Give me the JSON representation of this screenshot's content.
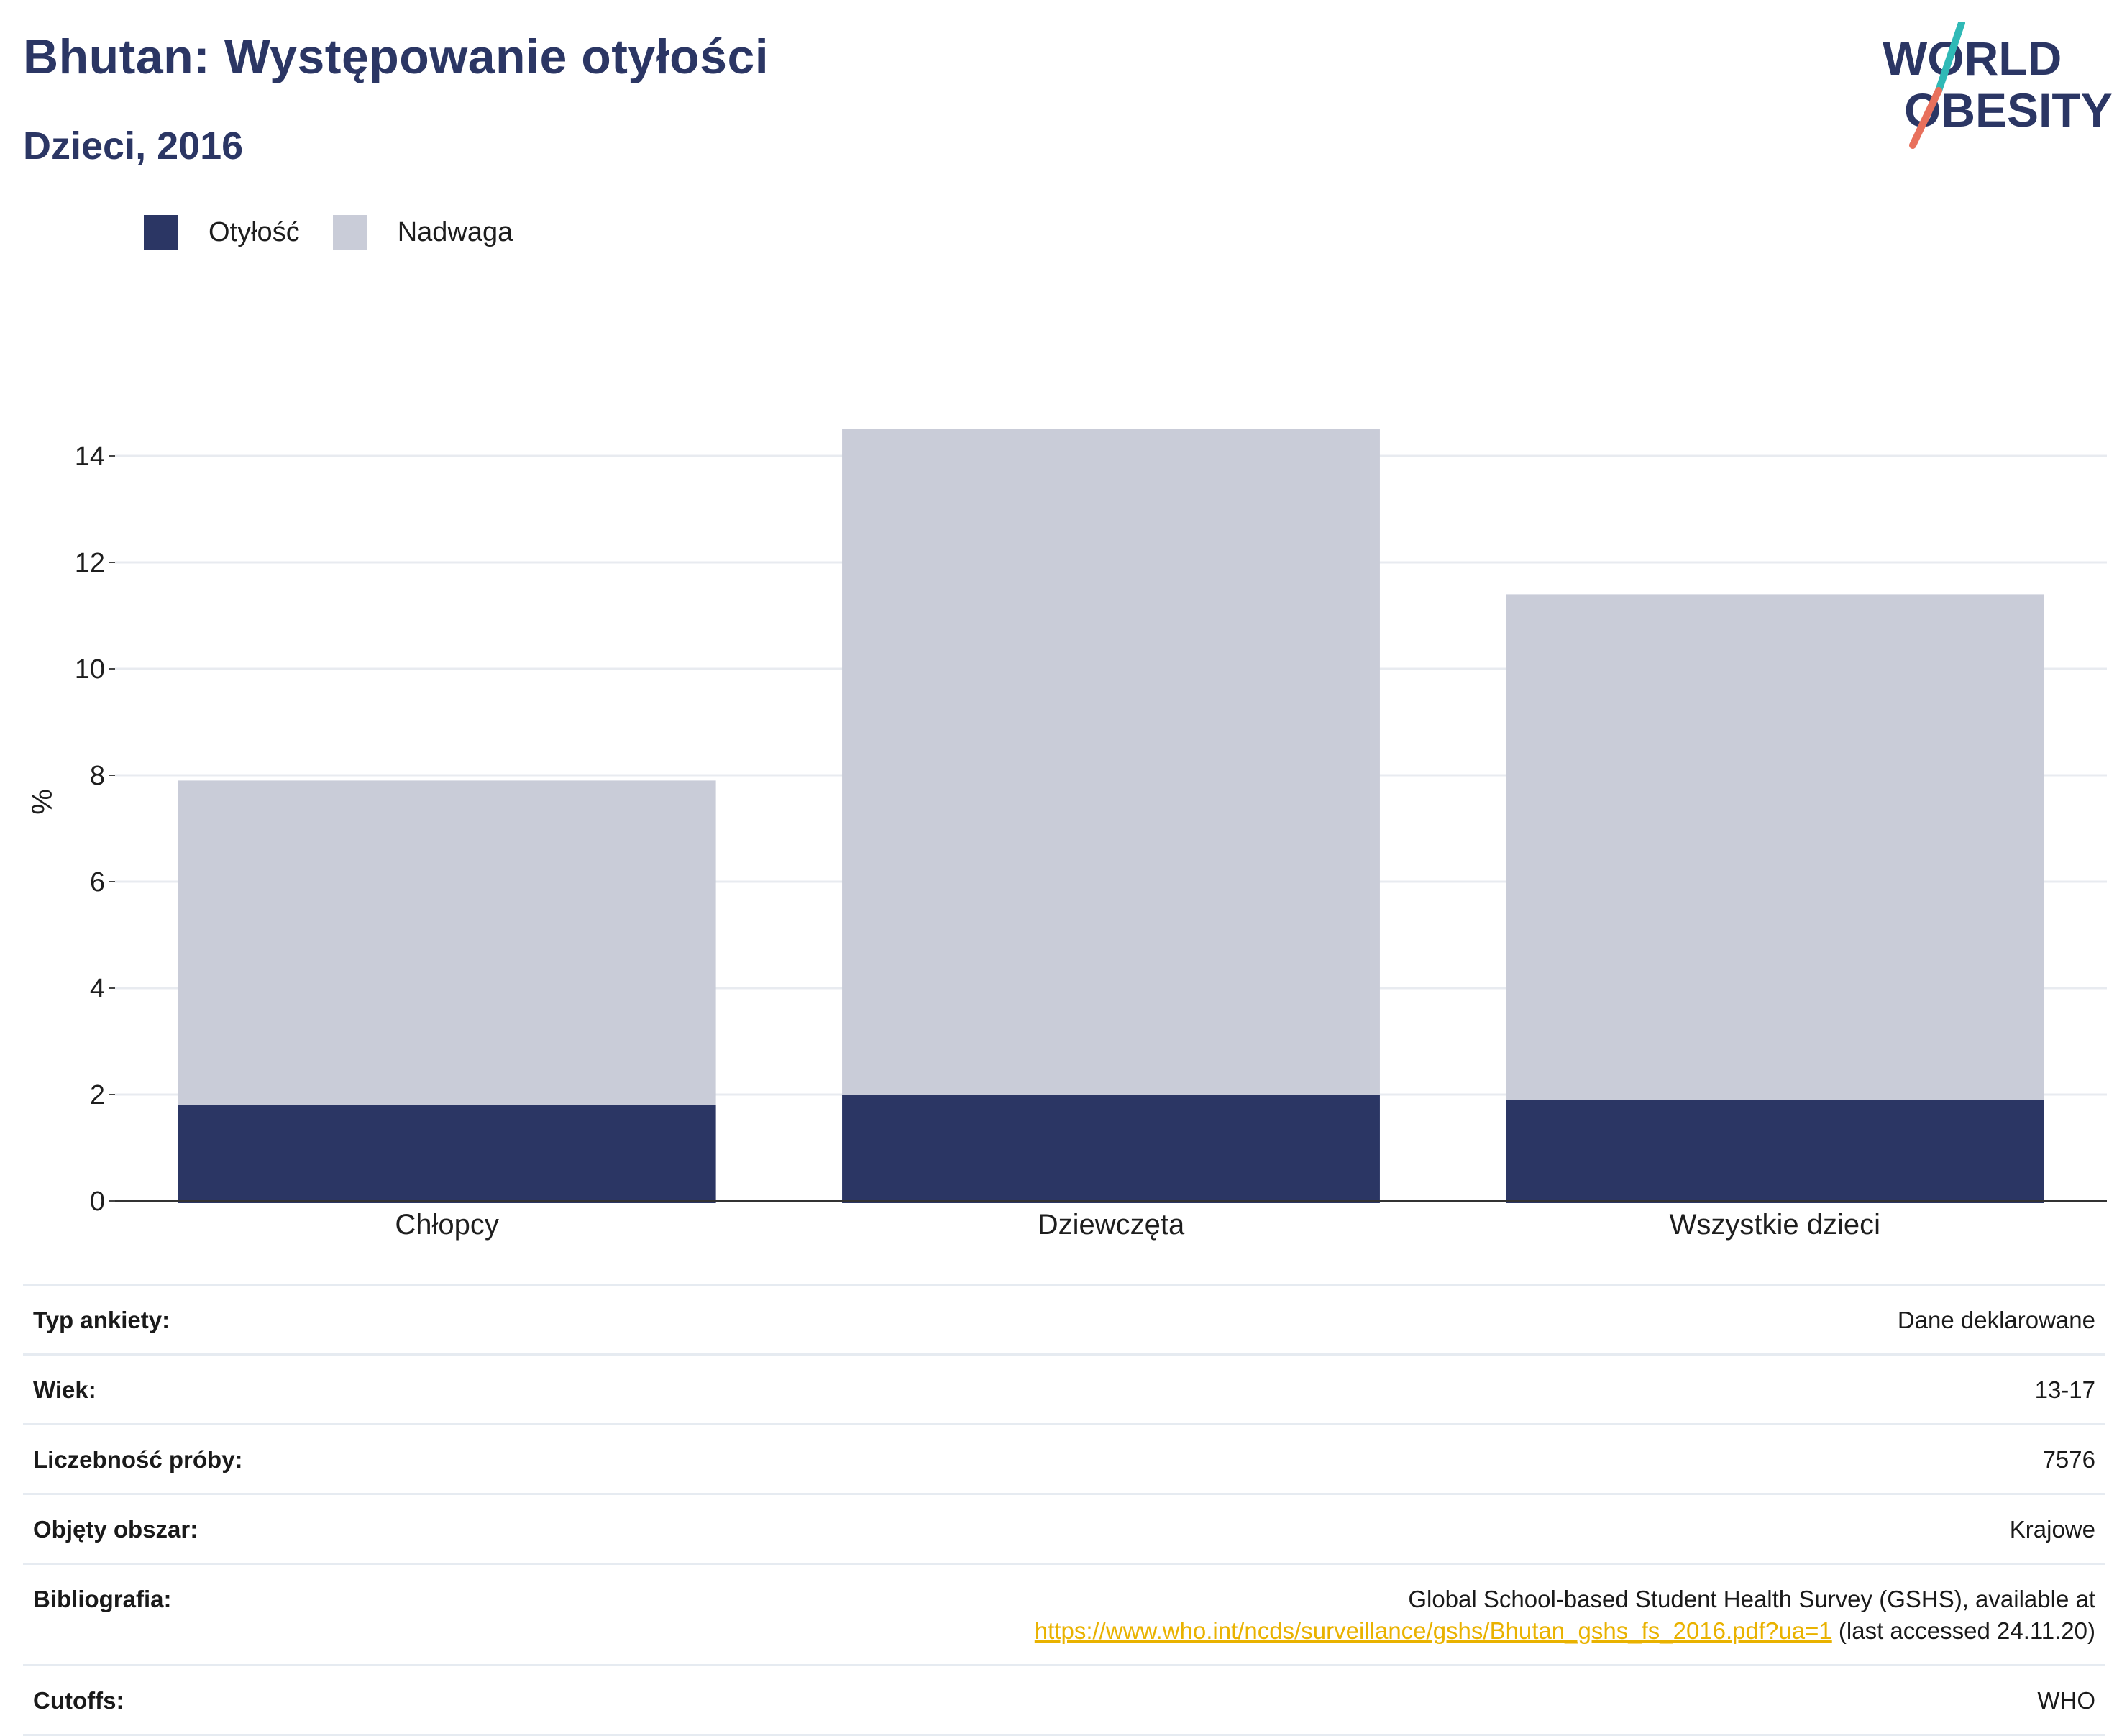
{
  "header": {
    "title": "Bhutan: Występowanie otyłości",
    "subtitle": "Dzieci, 2016"
  },
  "logo": {
    "line1": "WORLD",
    "line2": "OBESITY",
    "colors": {
      "text": "#2b3664",
      "slash_top": "#2fb9b6",
      "slash_bottom": "#e8705c"
    }
  },
  "legend": {
    "items": [
      {
        "label": "Otyłość",
        "color": "#2b3664"
      },
      {
        "label": "Nadwaga",
        "color": "#c9ccd8"
      }
    ]
  },
  "chart_data": {
    "type": "bar",
    "stacked": true,
    "categories": [
      "Chłopcy",
      "Dziewczęta",
      "Wszystkie dzieci"
    ],
    "series": [
      {
        "name": "Otyłość",
        "values": [
          1.8,
          2.0,
          1.9
        ],
        "color": "#2b3664"
      },
      {
        "name": "Nadwaga",
        "values": [
          6.1,
          12.5,
          9.5
        ],
        "color": "#c9ccd8"
      }
    ],
    "ylabel": "%",
    "yticks": [
      0,
      2,
      4,
      6,
      8,
      10,
      12,
      14
    ],
    "ylim": [
      0,
      15
    ],
    "grid": true,
    "legend_position": "top-left"
  },
  "info": {
    "survey_type": {
      "label": "Typ ankiety:",
      "value": "Dane deklarowane"
    },
    "age": {
      "label": "Wiek:",
      "value": "13-17"
    },
    "sample_size": {
      "label": "Liczebność próby:",
      "value": "7576"
    },
    "area": {
      "label": "Objęty obszar:",
      "value": "Krajowe"
    },
    "bibliography": {
      "label": "Bibliografia:",
      "line1": "Global School-based Student Health Survey (GSHS), available at",
      "link": "https://www.who.int/ncds/surveillance/gshs/Bhutan_gshs_fs_2016.pdf?ua=1",
      "suffix": " (last accessed 24.11.20)"
    },
    "cutoffs": {
      "label": "Cutoffs:",
      "value": "WHO"
    }
  }
}
